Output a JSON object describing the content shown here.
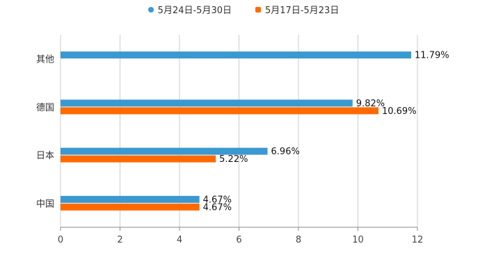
{
  "chart_data": {
    "type": "bar",
    "orientation": "horizontal",
    "categories": [
      "中国",
      "日本",
      "德国",
      "其他"
    ],
    "series": [
      {
        "name": "5月24日-5月30日",
        "color": "#3a99d0",
        "values": [
          4.67,
          6.96,
          9.82,
          11.79
        ],
        "labels": [
          "4.67%",
          "6.96%",
          "9.82%",
          "11.79%"
        ]
      },
      {
        "name": "5月17日-5月23日",
        "color": "#ff6a00",
        "values": [
          4.67,
          5.22,
          10.69,
          null
        ],
        "labels": [
          "4.67%",
          "5.22%",
          "10.69%",
          ""
        ]
      }
    ],
    "xlim": [
      0,
      12
    ],
    "xticks": [
      "0",
      "2",
      "4",
      "6",
      "8",
      "10",
      "12"
    ],
    "grid": true,
    "legend_position": "top-center",
    "title": "",
    "xlabel": "",
    "ylabel": ""
  }
}
